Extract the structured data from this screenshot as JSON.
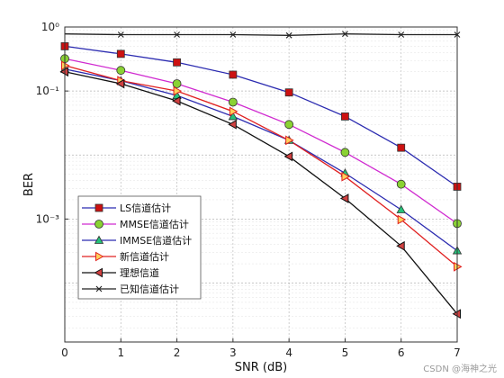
{
  "chart_data": {
    "type": "line",
    "xlabel": "SNR (dB)",
    "ylabel": "BER",
    "x_ticks": [
      "0",
      "1",
      "2",
      "3",
      "4",
      "5",
      "6",
      "7"
    ],
    "y_ticks": [
      "10⁰",
      "10⁻¹",
      "10⁻³"
    ],
    "xlim": [
      0,
      7
    ],
    "ylim": [
      1.2e-05,
      1
    ],
    "yscale": "log",
    "grid": true,
    "legend_position": "bottom-left",
    "series": [
      {
        "name": "LS信道估计",
        "color": "#2b2bb0",
        "marker": "square",
        "marker_color": "#cc1111",
        "x": [
          0,
          1,
          2,
          3,
          4,
          5,
          6,
          7
        ],
        "y": [
          0.5,
          0.38,
          0.28,
          0.18,
          0.095,
          0.04,
          0.013,
          0.0032
        ]
      },
      {
        "name": "MMSE信道估计",
        "color": "#d02ad0",
        "marker": "circle",
        "marker_color": "#8ad233",
        "x": [
          0,
          1,
          2,
          3,
          4,
          5,
          6,
          7
        ],
        "y": [
          0.32,
          0.21,
          0.13,
          0.067,
          0.03,
          0.011,
          0.0035,
          0.00085
        ]
      },
      {
        "name": "IMMSE信道估计",
        "color": "#2b2bb0",
        "marker": "triangle-up",
        "marker_color": "#25c27a",
        "x": [
          0,
          1,
          2,
          3,
          4,
          5,
          6,
          7
        ],
        "y": [
          0.22,
          0.145,
          0.085,
          0.04,
          0.017,
          0.0052,
          0.0014,
          0.00032
        ]
      },
      {
        "name": "新信道估计",
        "color": "#e02020",
        "marker": "triangle-right",
        "marker_color": "#ffcf5a",
        "x": [
          0,
          1,
          2,
          3,
          4,
          5,
          6,
          7
        ],
        "y": [
          0.25,
          0.145,
          0.1,
          0.048,
          0.017,
          0.0046,
          0.00098,
          0.00018
        ]
      },
      {
        "name": "理想信道",
        "color": "#111111",
        "marker": "triangle-left",
        "marker_color": "#d04040",
        "x": [
          0,
          1,
          2,
          3,
          4,
          5,
          6,
          7
        ],
        "y": [
          0.2,
          0.13,
          0.07,
          0.03,
          0.0095,
          0.0021,
          0.00038,
          3.3e-05
        ]
      },
      {
        "name": "已知信道估计",
        "color": "#222222",
        "marker": "x",
        "marker_color": "#222222",
        "x": [
          0,
          1,
          2,
          3,
          4,
          5,
          6,
          7
        ],
        "y": [
          0.78,
          0.76,
          0.76,
          0.76,
          0.74,
          0.78,
          0.76,
          0.76
        ]
      }
    ]
  },
  "watermark": "CSDN @海神之光"
}
